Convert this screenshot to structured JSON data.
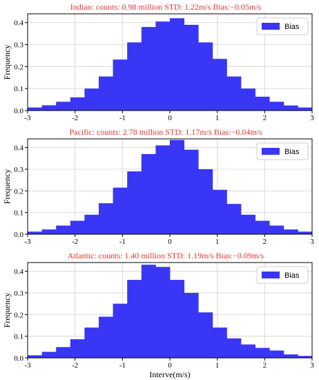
{
  "chart_data": [
    {
      "type": "bar",
      "title": "Indian: counts: 0.98 million STD: 1.22m/s Bias:−0.05m/s",
      "title_color": "#e8322f",
      "ylabel": "Frequency",
      "xlabel": "",
      "xlim": [
        -3,
        3
      ],
      "ylim": [
        0,
        0.44
      ],
      "xticks": [
        "-3",
        "-2",
        "-1",
        "0",
        "1",
        "2",
        "3"
      ],
      "yticks": [
        "0.0",
        "0.1",
        "0.2",
        "0.3",
        "0.4"
      ],
      "grid": true,
      "legend": {
        "position": "top-right",
        "entries": [
          "Bias"
        ]
      },
      "bar_color": "#3a36f5",
      "bin_edges": [
        -3.0,
        -2.7,
        -2.4,
        -2.1,
        -1.8,
        -1.5,
        -1.2,
        -0.9,
        -0.6,
        -0.3,
        0.0,
        0.3,
        0.6,
        0.9,
        1.2,
        1.5,
        1.8,
        2.1,
        2.4,
        2.7,
        3.0
      ],
      "series": [
        {
          "name": "Bias",
          "values": [
            0.014,
            0.024,
            0.04,
            0.06,
            0.1,
            0.155,
            0.232,
            0.31,
            0.38,
            0.405,
            0.42,
            0.39,
            0.31,
            0.235,
            0.155,
            0.1,
            0.063,
            0.04,
            0.023,
            0.014
          ]
        }
      ]
    },
    {
      "type": "bar",
      "title": "Pacific: counts: 2.78 million STD: 1.17m/s Bias:−0.04m/s",
      "title_color": "#e8322f",
      "ylabel": "Frequency",
      "xlabel": "",
      "xlim": [
        -3,
        3
      ],
      "ylim": [
        0,
        0.44
      ],
      "xticks": [
        "-3",
        "-2",
        "-1",
        "0",
        "1",
        "2",
        "3"
      ],
      "yticks": [
        "0.0",
        "0.1",
        "0.2",
        "0.3",
        "0.4"
      ],
      "grid": true,
      "legend": {
        "position": "top-right",
        "entries": [
          "Bias"
        ]
      },
      "bar_color": "#3a36f5",
      "bin_edges": [
        -3.0,
        -2.7,
        -2.4,
        -2.1,
        -1.8,
        -1.5,
        -1.2,
        -0.9,
        -0.6,
        -0.3,
        0.0,
        0.3,
        0.6,
        0.9,
        1.2,
        1.5,
        1.8,
        2.1,
        2.4,
        2.7,
        3.0
      ],
      "series": [
        {
          "name": "Bias",
          "values": [
            0.012,
            0.022,
            0.04,
            0.062,
            0.09,
            0.143,
            0.215,
            0.29,
            0.37,
            0.41,
            0.435,
            0.39,
            0.3,
            0.205,
            0.14,
            0.09,
            0.062,
            0.04,
            0.022,
            0.012
          ]
        }
      ]
    },
    {
      "type": "bar",
      "title": "Atlantic: counts: 1.40 million STD: 1.19m/s Bias:−0.09m/s",
      "title_color": "#e8322f",
      "ylabel": "Frequency",
      "xlabel": "Interve(m/s)",
      "xlim": [
        -3,
        3
      ],
      "ylim": [
        0,
        0.44
      ],
      "xticks": [
        "-3",
        "-2",
        "-1",
        "0",
        "1",
        "2",
        "3"
      ],
      "yticks": [
        "0.0",
        "0.1",
        "0.2",
        "0.3",
        "0.4"
      ],
      "grid": true,
      "legend": {
        "position": "top-right",
        "entries": [
          "Bias"
        ]
      },
      "bar_color": "#3a36f5",
      "bin_edges": [
        -3.0,
        -2.7,
        -2.4,
        -2.1,
        -1.8,
        -1.5,
        -1.2,
        -0.9,
        -0.6,
        -0.3,
        0.0,
        0.3,
        0.6,
        0.9,
        1.2,
        1.5,
        1.8,
        2.1,
        2.4,
        2.7,
        3.0
      ],
      "series": [
        {
          "name": "Bias",
          "values": [
            0.012,
            0.028,
            0.05,
            0.086,
            0.14,
            0.19,
            0.25,
            0.36,
            0.43,
            0.42,
            0.36,
            0.3,
            0.21,
            0.14,
            0.09,
            0.062,
            0.046,
            0.034,
            0.016,
            0.009
          ]
        }
      ]
    }
  ]
}
